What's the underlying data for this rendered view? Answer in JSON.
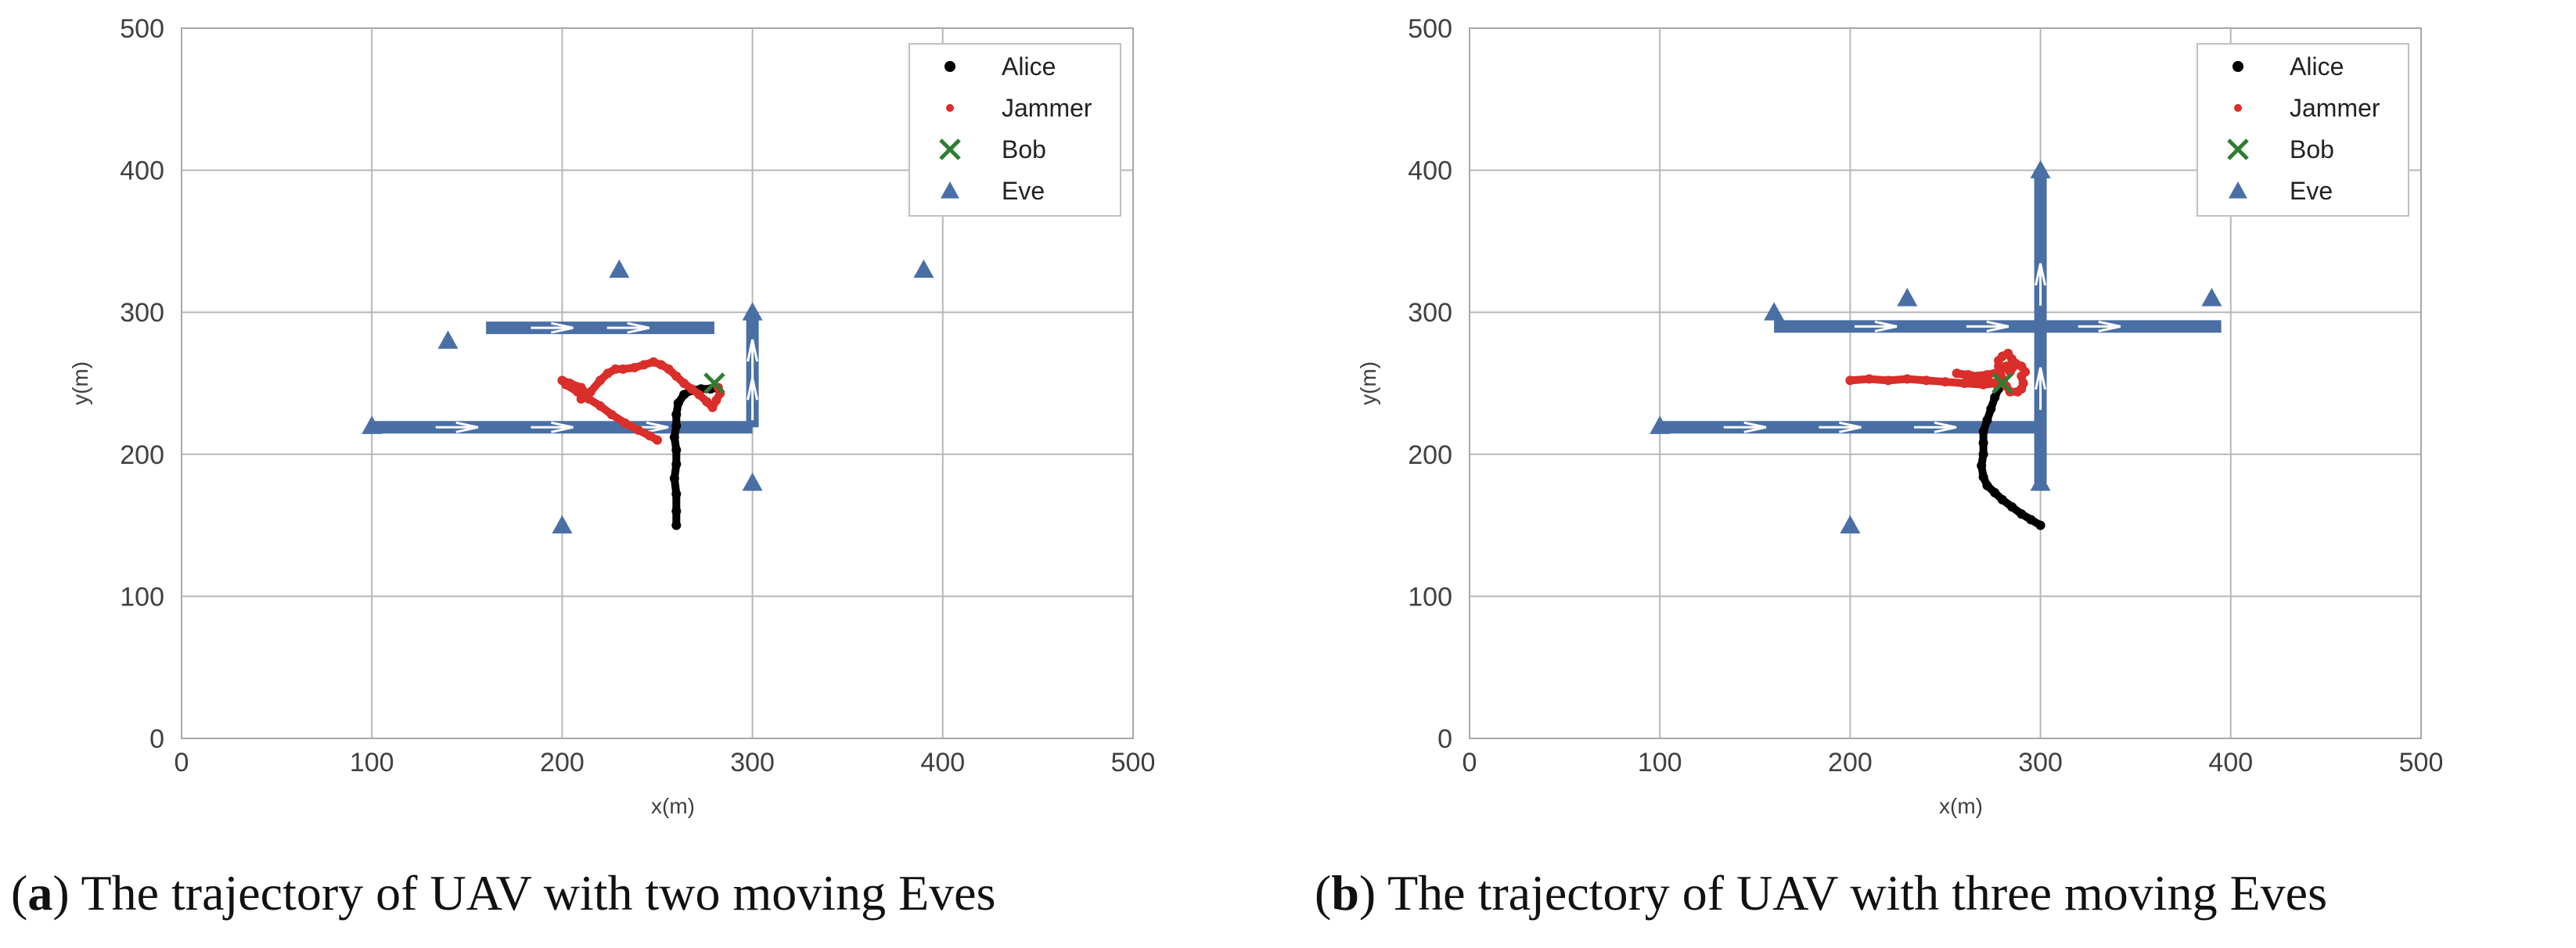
{
  "colors": {
    "alice": "#000000",
    "jammer": "#d92e2a",
    "bob": "#2e7d32",
    "eve": "#4a6fa5",
    "grid": "#b8b8b8",
    "axis_text": "#404040"
  },
  "panels": [
    {
      "caption_letter": "a",
      "caption_text": "The trajectory of UAV with two moving Eves"
    },
    {
      "caption_letter": "b",
      "caption_text": "The trajectory of UAV with three moving Eves"
    }
  ],
  "chart_data": [
    {
      "type": "scatter",
      "title": "",
      "xlabel": "x(m)",
      "ylabel": "y(m)",
      "xlim": [
        0,
        500
      ],
      "ylim": [
        0,
        500
      ],
      "xticks": [
        0,
        100,
        200,
        300,
        400,
        500
      ],
      "yticks": [
        0,
        100,
        200,
        300,
        400,
        500
      ],
      "grid": true,
      "legend_position": "top-right",
      "legend": [
        "Alice",
        "Jammer",
        "Bob",
        "Eve"
      ],
      "series": [
        {
          "name": "Alice",
          "marker": "dot-path",
          "color": "#000000",
          "points": [
            [
              260,
              150
            ],
            [
              260,
              160
            ],
            [
              260,
              172
            ],
            [
              259,
              183
            ],
            [
              260,
              193
            ],
            [
              260,
              203
            ],
            [
              259,
              212
            ],
            [
              260,
              220
            ],
            [
              260,
              228
            ],
            [
              261,
              236
            ],
            [
              264,
              242
            ],
            [
              268,
              245
            ],
            [
              273,
              246
            ],
            [
              278,
              246
            ],
            [
              280,
              247
            ]
          ]
        },
        {
          "name": "Jammer",
          "marker": "dot-path",
          "color": "#d92e2a",
          "points": [
            [
              250,
              210
            ],
            [
              246,
              213
            ],
            [
              240,
              217
            ],
            [
              233,
              222
            ],
            [
              226,
              228
            ],
            [
              220,
              234
            ],
            [
              214,
              239
            ],
            [
              208,
              244
            ],
            [
              202,
              249
            ],
            [
              200,
              252
            ],
            [
              204,
              250
            ],
            [
              210,
              247
            ],
            [
              213,
              242
            ],
            [
              210,
              239
            ],
            [
              215,
              244
            ],
            [
              220,
              252
            ],
            [
              224,
              257
            ],
            [
              228,
              260
            ],
            [
              232,
              260
            ],
            [
              238,
              261
            ],
            [
              243,
              263
            ],
            [
              248,
              265
            ],
            [
              252,
              263
            ],
            [
              256,
              260
            ],
            [
              260,
              255
            ],
            [
              264,
              250
            ],
            [
              268,
              246
            ],
            [
              272,
              242
            ],
            [
              276,
              237
            ],
            [
              279,
              233
            ],
            [
              281,
              238
            ],
            [
              283,
              243
            ],
            [
              282,
              247
            ]
          ]
        },
        {
          "name": "Bob",
          "marker": "x",
          "color": "#2e7d32",
          "points": [
            [
              280,
              250
            ]
          ]
        },
        {
          "name": "Eve",
          "marker": "triangle",
          "color": "#4a6fa5",
          "points": [
            [
              100,
              220
            ],
            [
              140,
              280
            ],
            [
              200,
              150
            ],
            [
              230,
              330
            ],
            [
              300,
              180
            ],
            [
              300,
              300
            ],
            [
              390,
              330
            ]
          ]
        }
      ],
      "eve_tracks": [
        {
          "from": [
            100,
            219
          ],
          "to": [
            300,
            219
          ]
        },
        {
          "from": [
            300,
            219
          ],
          "to": [
            300,
            300
          ]
        },
        {
          "from": [
            160,
            289
          ],
          "to": [
            280,
            289
          ]
        }
      ]
    },
    {
      "type": "scatter",
      "title": "",
      "xlabel": "x(m)",
      "ylabel": "y(m)",
      "xlim": [
        0,
        500
      ],
      "ylim": [
        0,
        500
      ],
      "xticks": [
        0,
        100,
        200,
        300,
        400,
        500
      ],
      "yticks": [
        0,
        100,
        200,
        300,
        400,
        500
      ],
      "grid": true,
      "legend_position": "top-right",
      "legend": [
        "Alice",
        "Jammer",
        "Bob",
        "Eve"
      ],
      "series": [
        {
          "name": "Alice",
          "marker": "dot-path",
          "color": "#000000",
          "points": [
            [
              300,
              150
            ],
            [
              295,
              154
            ],
            [
              290,
              158
            ],
            [
              285,
              163
            ],
            [
              280,
              168
            ],
            [
              276,
              173
            ],
            [
              272,
              178
            ],
            [
              270,
              184
            ],
            [
              269,
              192
            ],
            [
              270,
              200
            ],
            [
              270,
              208
            ],
            [
              270,
              216
            ],
            [
              272,
              224
            ],
            [
              274,
              232
            ],
            [
              276,
              240
            ],
            [
              278,
              246
            ],
            [
              280,
              250
            ]
          ]
        },
        {
          "name": "Jammer",
          "marker": "dot-path",
          "color": "#d92e2a",
          "points": [
            [
              200,
              252
            ],
            [
              210,
              253
            ],
            [
              220,
              252
            ],
            [
              230,
              253
            ],
            [
              240,
              252
            ],
            [
              250,
              251
            ],
            [
              260,
              250
            ],
            [
              270,
              249
            ],
            [
              276,
              250
            ],
            [
              272,
              252
            ],
            [
              268,
              254
            ],
            [
              262,
              256
            ],
            [
              256,
              257
            ],
            [
              264,
              255
            ],
            [
              272,
              256
            ],
            [
              278,
              258
            ],
            [
              282,
              262
            ],
            [
              287,
              264
            ],
            [
              290,
              262
            ],
            [
              292,
              258
            ],
            [
              290,
              255
            ],
            [
              291,
              250
            ],
            [
              290,
              246
            ],
            [
              288,
              244
            ],
            [
              284,
              244
            ],
            [
              282,
              248
            ],
            [
              280,
              253
            ],
            [
              279,
              258
            ],
            [
              278,
              262
            ],
            [
              278,
              266
            ],
            [
              280,
              269
            ],
            [
              283,
              271
            ],
            [
              285,
              267
            ],
            [
              287,
              263
            ],
            [
              284,
              258
            ]
          ]
        },
        {
          "name": "Bob",
          "marker": "x",
          "color": "#2e7d32",
          "points": [
            [
              280,
              250
            ]
          ]
        },
        {
          "name": "Eve",
          "marker": "triangle",
          "color": "#4a6fa5",
          "points": [
            [
              100,
              220
            ],
            [
              160,
              300
            ],
            [
              200,
              150
            ],
            [
              230,
              310
            ],
            [
              300,
              180
            ],
            [
              300,
              400
            ],
            [
              390,
              310
            ]
          ]
        }
      ],
      "eve_tracks": [
        {
          "from": [
            100,
            219
          ],
          "to": [
            300,
            219
          ]
        },
        {
          "from": [
            300,
            180
          ],
          "to": [
            300,
            400
          ]
        },
        {
          "from": [
            160,
            290
          ],
          "to": [
            395,
            290
          ]
        }
      ]
    }
  ]
}
